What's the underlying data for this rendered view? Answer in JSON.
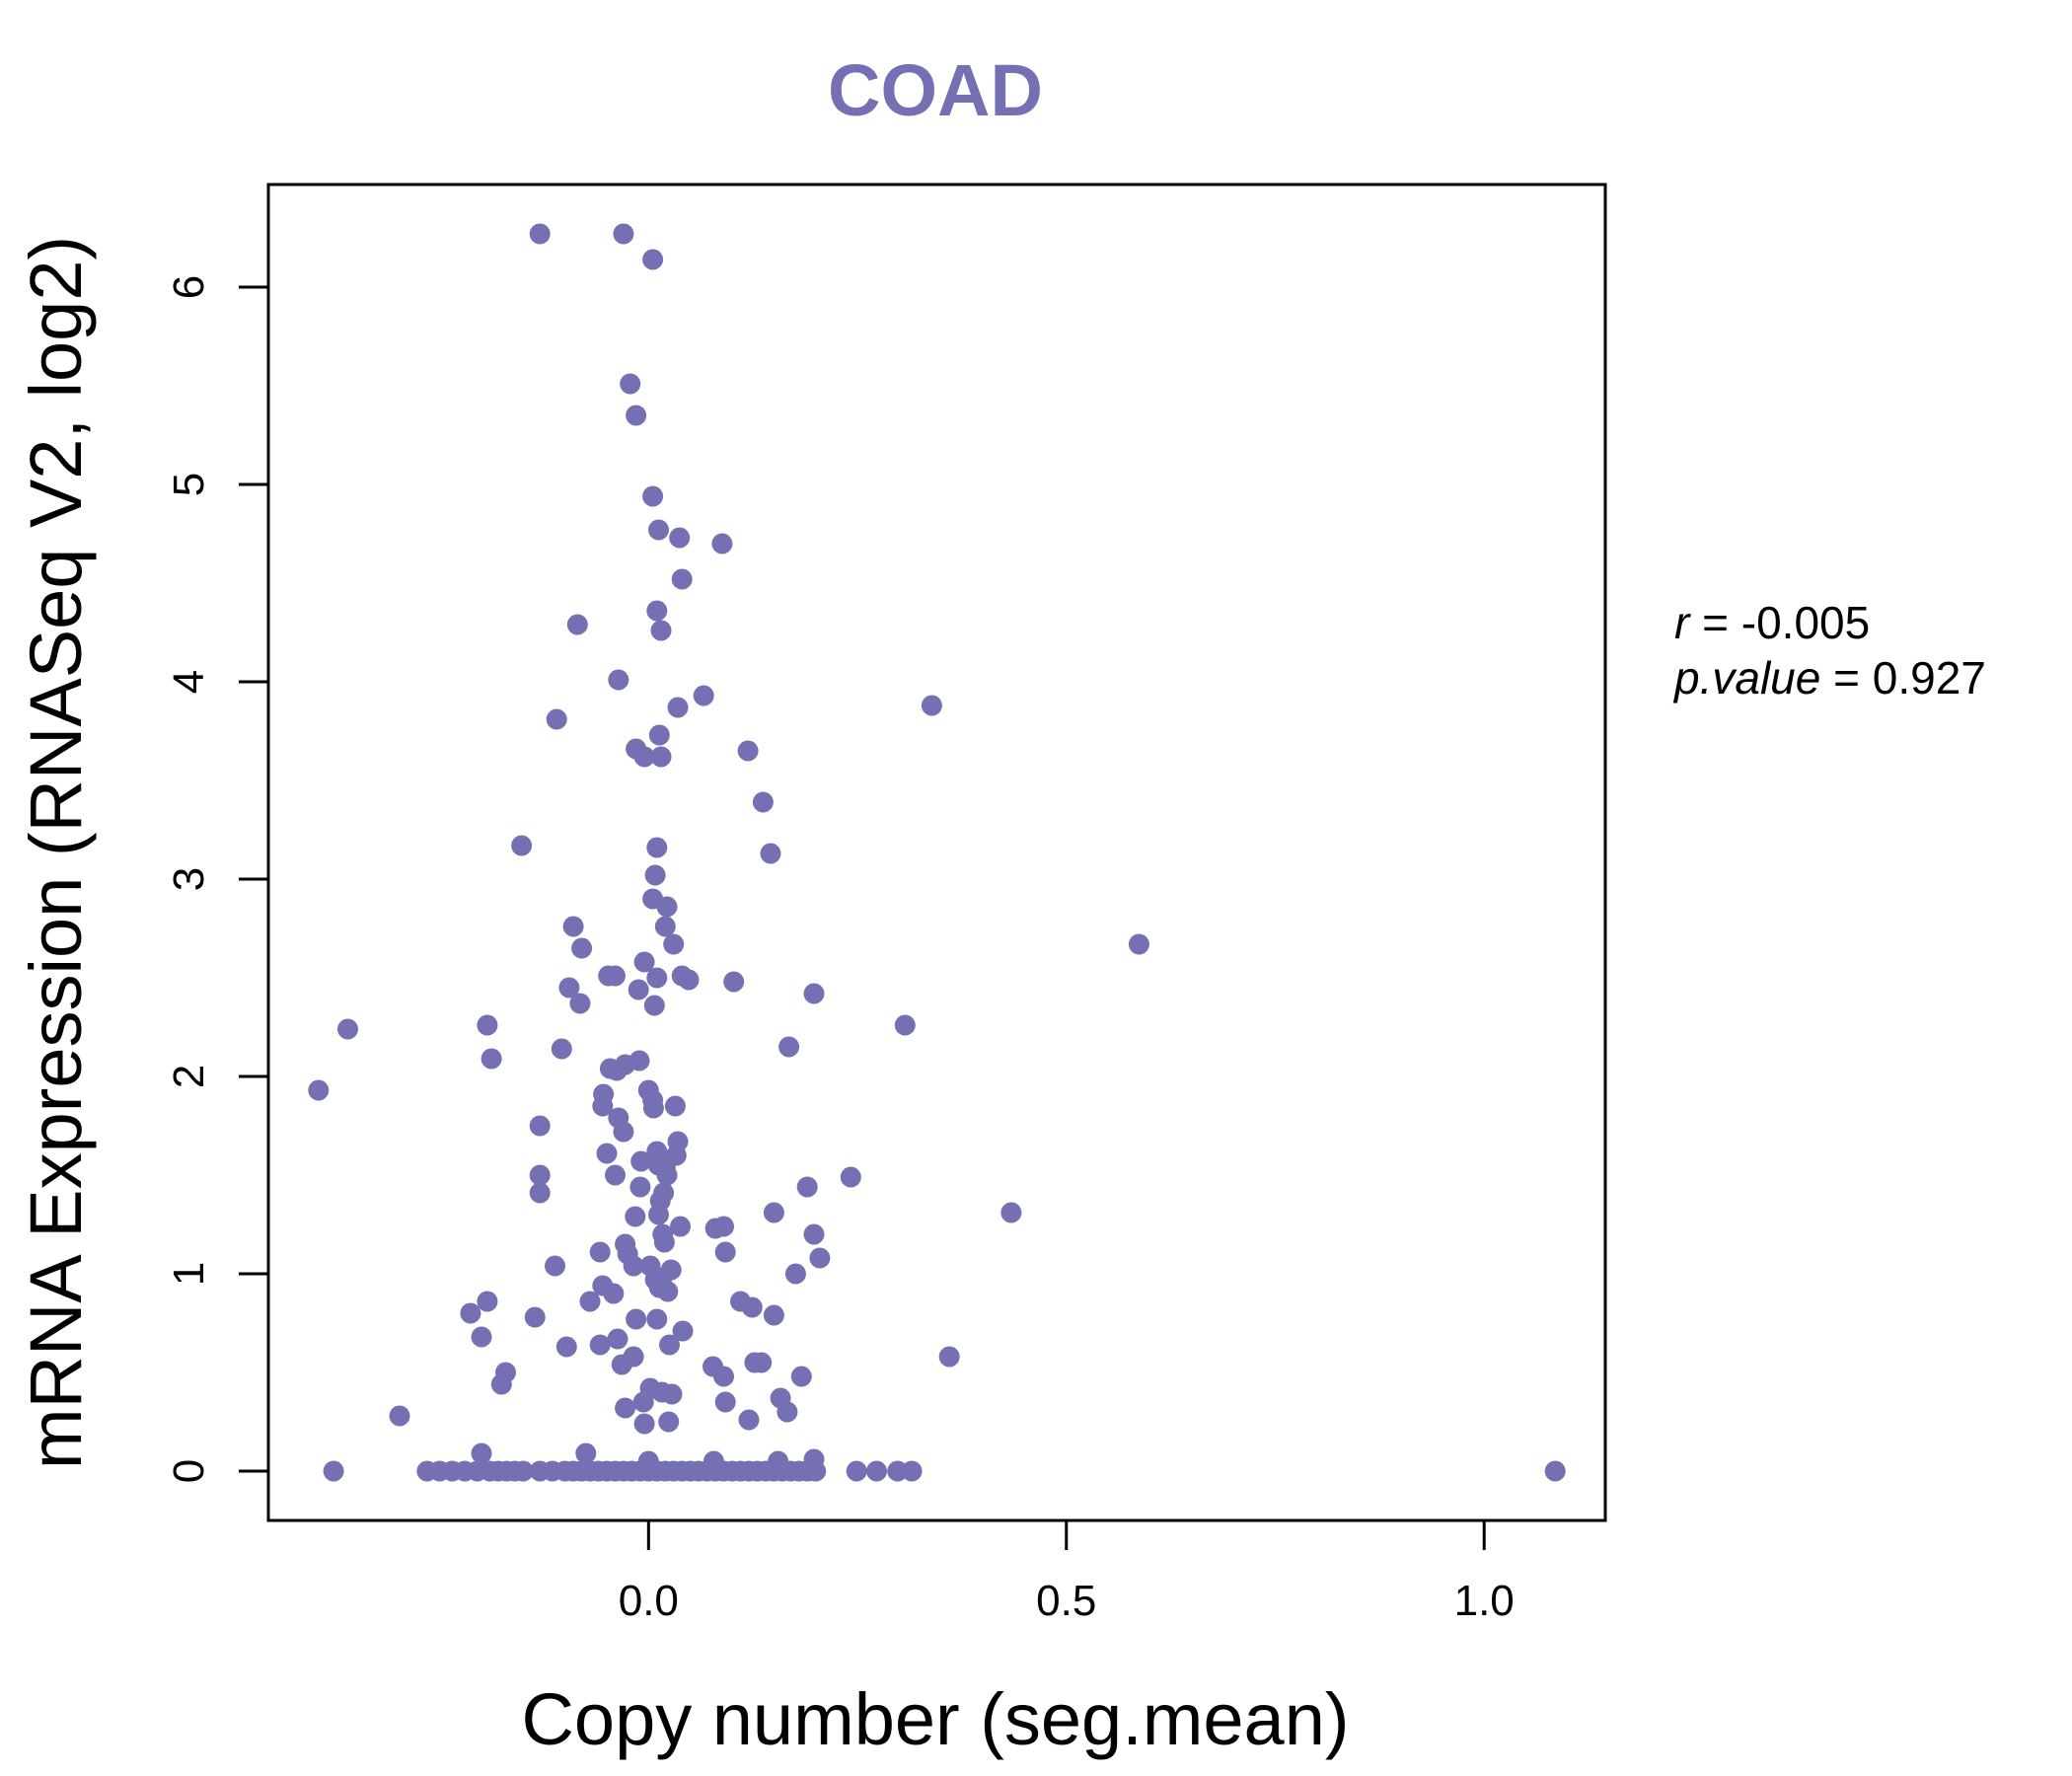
{
  "chart_data": {
    "type": "scatter",
    "title": "COAD",
    "xlabel": "Copy number (seg.mean)",
    "ylabel": "mRNA Expression (RNASeq V2, log2)",
    "xlim": [
      -0.455,
      1.145
    ],
    "ylim": [
      -0.25,
      6.52
    ],
    "xticks": [
      0.0,
      0.5,
      1.0
    ],
    "xtick_labels": [
      "0.0",
      "0.5",
      "1.0"
    ],
    "yticks": [
      0,
      1,
      2,
      3,
      4,
      5,
      6
    ],
    "ytick_labels": [
      "0",
      "1",
      "2",
      "3",
      "4",
      "5",
      "6"
    ],
    "grid": false,
    "colors": {
      "points": "#7570b3",
      "title": "#7570b3",
      "frame": "#000000"
    },
    "annotation": {
      "r_symbol": "r",
      "r_eq": " = ",
      "r_value": "-0.005",
      "p_symbol": "p.value",
      "p_eq": " = ",
      "p_value": "0.927"
    },
    "points": [
      [
        -0.13,
        6.27
      ],
      [
        -0.03,
        6.27
      ],
      [
        0.005,
        6.14
      ],
      [
        -0.022,
        5.51
      ],
      [
        -0.015,
        5.35
      ],
      [
        0.005,
        4.94
      ],
      [
        0.012,
        4.77
      ],
      [
        0.037,
        4.73
      ],
      [
        0.088,
        4.7
      ],
      [
        0.04,
        4.52
      ],
      [
        -0.085,
        4.29
      ],
      [
        0.01,
        4.36
      ],
      [
        0.015,
        4.26
      ],
      [
        -0.036,
        4.01
      ],
      [
        0.066,
        3.93
      ],
      [
        0.035,
        3.87
      ],
      [
        0.339,
        3.88
      ],
      [
        -0.11,
        3.81
      ],
      [
        -0.015,
        3.66
      ],
      [
        -0.005,
        3.62
      ],
      [
        0.013,
        3.73
      ],
      [
        0.015,
        3.62
      ],
      [
        0.119,
        3.65
      ],
      [
        0.137,
        3.39
      ],
      [
        -0.152,
        3.17
      ],
      [
        0.01,
        3.16
      ],
      [
        0.146,
        3.13
      ],
      [
        0.008,
        3.02
      ],
      [
        0.005,
        2.9
      ],
      [
        0.022,
        2.86
      ],
      [
        0.02,
        2.76
      ],
      [
        -0.09,
        2.76
      ],
      [
        0.03,
        2.67
      ],
      [
        -0.08,
        2.65
      ],
      [
        0.587,
        2.67
      ],
      [
        -0.005,
        2.58
      ],
      [
        0.01,
        2.5
      ],
      [
        -0.04,
        2.51
      ],
      [
        -0.048,
        2.51
      ],
      [
        0.04,
        2.51
      ],
      [
        0.048,
        2.49
      ],
      [
        0.102,
        2.48
      ],
      [
        -0.095,
        2.45
      ],
      [
        -0.012,
        2.44
      ],
      [
        0.198,
        2.42
      ],
      [
        0.007,
        2.36
      ],
      [
        -0.082,
        2.37
      ],
      [
        -0.36,
        2.24
      ],
      [
        -0.193,
        2.26
      ],
      [
        0.307,
        2.26
      ],
      [
        0.168,
        2.15
      ],
      [
        -0.104,
        2.14
      ],
      [
        -0.188,
        2.09
      ],
      [
        -0.011,
        2.08
      ],
      [
        -0.028,
        2.06
      ],
      [
        -0.038,
        2.03
      ],
      [
        -0.046,
        2.04
      ],
      [
        -0.395,
        1.93
      ],
      [
        0.0,
        1.93
      ],
      [
        0.005,
        1.88
      ],
      [
        -0.054,
        1.91
      ],
      [
        -0.055,
        1.85
      ],
      [
        0.032,
        1.85
      ],
      [
        0.006,
        1.84
      ],
      [
        -0.036,
        1.79
      ],
      [
        -0.03,
        1.72
      ],
      [
        -0.13,
        1.75
      ],
      [
        0.035,
        1.67
      ],
      [
        0.01,
        1.62
      ],
      [
        0.033,
        1.6
      ],
      [
        -0.05,
        1.61
      ],
      [
        -0.009,
        1.57
      ],
      [
        0.02,
        1.54
      ],
      [
        0.012,
        1.55
      ],
      [
        -0.04,
        1.5
      ],
      [
        -0.13,
        1.5
      ],
      [
        0.022,
        1.5
      ],
      [
        -0.01,
        1.44
      ],
      [
        0.19,
        1.44
      ],
      [
        0.242,
        1.49
      ],
      [
        -0.13,
        1.41
      ],
      [
        0.018,
        1.41
      ],
      [
        0.014,
        1.37
      ],
      [
        0.15,
        1.31
      ],
      [
        0.434,
        1.31
      ],
      [
        0.012,
        1.3
      ],
      [
        -0.016,
        1.29
      ],
      [
        0.017,
        1.2
      ],
      [
        0.038,
        1.24
      ],
      [
        0.08,
        1.23
      ],
      [
        0.09,
        1.24
      ],
      [
        0.198,
        1.2
      ],
      [
        0.019,
        1.16
      ],
      [
        -0.028,
        1.15
      ],
      [
        -0.058,
        1.11
      ],
      [
        0.092,
        1.11
      ],
      [
        0.205,
        1.08
      ],
      [
        -0.025,
        1.1
      ],
      [
        -0.112,
        1.04
      ],
      [
        -0.018,
        1.04
      ],
      [
        0.002,
        1.04
      ],
      [
        0.027,
        1.02
      ],
      [
        0.016,
        0.98
      ],
      [
        0.176,
        1.0
      ],
      [
        0.008,
        0.97
      ],
      [
        0.013,
        0.93
      ],
      [
        0.023,
        0.91
      ],
      [
        -0.055,
        0.94
      ],
      [
        -0.042,
        0.9
      ],
      [
        -0.07,
        0.86
      ],
      [
        0.11,
        0.86
      ],
      [
        -0.193,
        0.86
      ],
      [
        0.124,
        0.83
      ],
      [
        -0.213,
        0.8
      ],
      [
        -0.136,
        0.78
      ],
      [
        0.15,
        0.79
      ],
      [
        0.01,
        0.77
      ],
      [
        -0.015,
        0.77
      ],
      [
        0.041,
        0.71
      ],
      [
        -0.2,
        0.68
      ],
      [
        -0.037,
        0.67
      ],
      [
        -0.058,
        0.64
      ],
      [
        -0.098,
        0.63
      ],
      [
        0.025,
        0.64
      ],
      [
        0.36,
        0.58
      ],
      [
        -0.018,
        0.58
      ],
      [
        -0.032,
        0.54
      ],
      [
        0.127,
        0.55
      ],
      [
        0.135,
        0.55
      ],
      [
        0.077,
        0.53
      ],
      [
        0.09,
        0.48
      ],
      [
        0.183,
        0.48
      ],
      [
        -0.171,
        0.5
      ],
      [
        -0.176,
        0.44
      ],
      [
        0.002,
        0.42
      ],
      [
        0.016,
        0.4
      ],
      [
        0.028,
        0.39
      ],
      [
        0.158,
        0.37
      ],
      [
        -0.006,
        0.35
      ],
      [
        0.092,
        0.35
      ],
      [
        -0.028,
        0.32
      ],
      [
        0.166,
        0.3
      ],
      [
        -0.298,
        0.28
      ],
      [
        0.12,
        0.26
      ],
      [
        -0.005,
        0.24
      ],
      [
        0.024,
        0.25
      ],
      [
        -0.2,
        0.09
      ],
      [
        -0.075,
        0.09
      ],
      [
        0.155,
        0.05
      ],
      [
        0.198,
        0.06
      ],
      [
        0.078,
        0.05
      ],
      [
        0.0,
        0.05
      ],
      [
        -0.377,
        0.0
      ],
      [
        -0.265,
        0.0
      ],
      [
        -0.25,
        0.0
      ],
      [
        -0.235,
        0.0
      ],
      [
        -0.22,
        0.0
      ],
      [
        -0.205,
        0.0
      ],
      [
        -0.19,
        0.0
      ],
      [
        -0.18,
        0.0
      ],
      [
        -0.17,
        0.0
      ],
      [
        -0.16,
        0.0
      ],
      [
        -0.15,
        0.0
      ],
      [
        -0.13,
        0.0
      ],
      [
        -0.115,
        0.0
      ],
      [
        -0.1,
        0.0
      ],
      [
        -0.09,
        0.0
      ],
      [
        -0.08,
        0.0
      ],
      [
        -0.07,
        0.0
      ],
      [
        -0.06,
        0.0
      ],
      [
        -0.05,
        0.0
      ],
      [
        -0.04,
        0.0
      ],
      [
        -0.03,
        0.0
      ],
      [
        -0.02,
        0.0
      ],
      [
        -0.01,
        0.0
      ],
      [
        0.0,
        0.0
      ],
      [
        0.01,
        0.0
      ],
      [
        0.02,
        0.0
      ],
      [
        0.03,
        0.0
      ],
      [
        0.04,
        0.0
      ],
      [
        0.05,
        0.0
      ],
      [
        0.06,
        0.0
      ],
      [
        0.07,
        0.0
      ],
      [
        0.08,
        0.0
      ],
      [
        0.09,
        0.0
      ],
      [
        0.1,
        0.0
      ],
      [
        0.11,
        0.0
      ],
      [
        0.12,
        0.0
      ],
      [
        0.13,
        0.0
      ],
      [
        0.14,
        0.0
      ],
      [
        0.15,
        0.0
      ],
      [
        0.16,
        0.0
      ],
      [
        0.17,
        0.0
      ],
      [
        0.18,
        0.0
      ],
      [
        0.19,
        0.0
      ],
      [
        0.2,
        0.0
      ],
      [
        0.249,
        0.0
      ],
      [
        0.273,
        0.0
      ],
      [
        0.298,
        0.0
      ],
      [
        0.315,
        0.0
      ],
      [
        1.085,
        0.0
      ]
    ]
  }
}
